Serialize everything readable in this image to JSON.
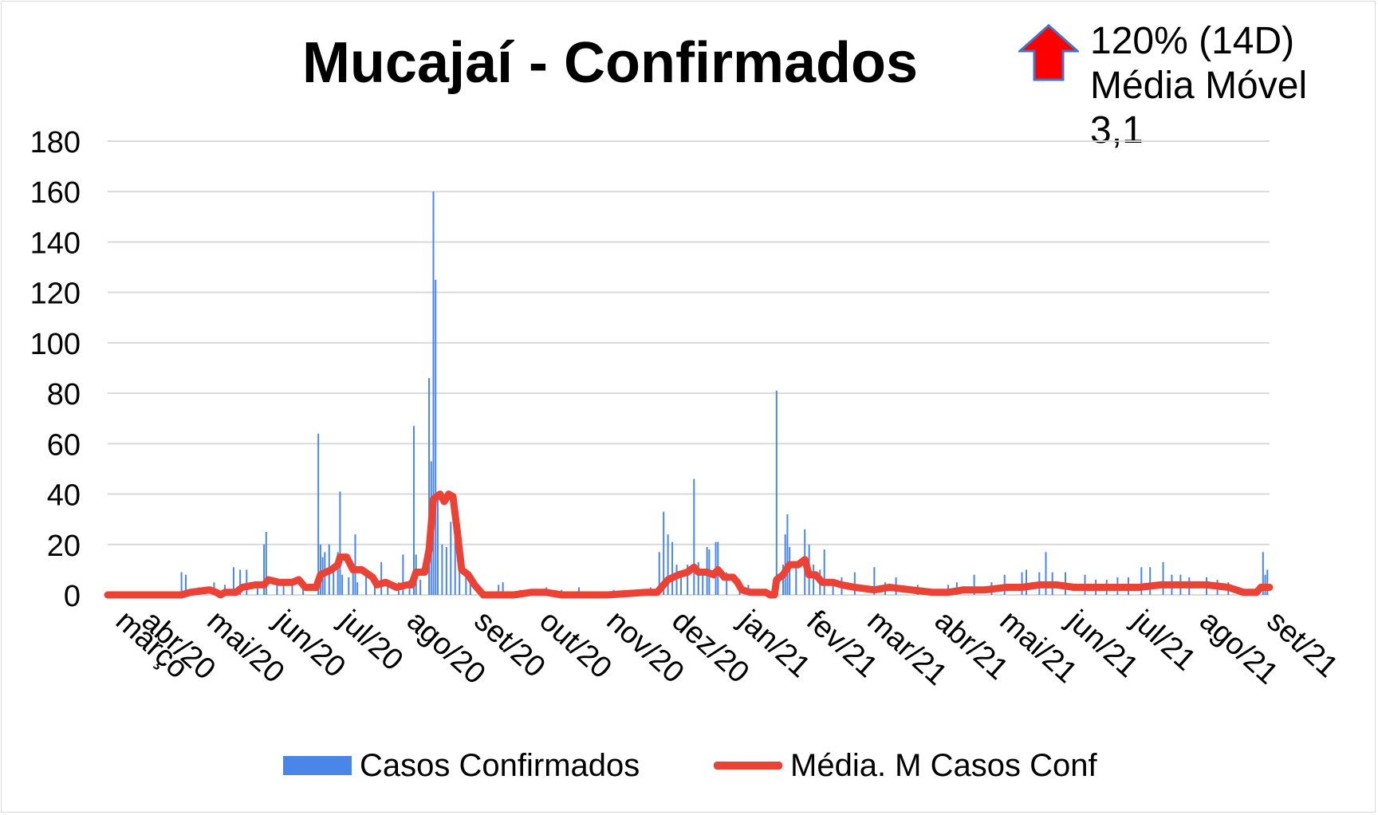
{
  "chart_data": {
    "type": "bar",
    "title": "Mucajaí - Confirmados",
    "ylim": [
      0,
      180
    ],
    "yticks": [
      0,
      20,
      40,
      60,
      80,
      100,
      120,
      140,
      160,
      180
    ],
    "xlim": [
      "2020-03-17",
      "2021-09-03"
    ],
    "grid": true,
    "legend_position": "bottom",
    "x_tick_labels": [
      {
        "date": "2020-03-20",
        "label": "março"
      },
      {
        "date": "2020-04-01",
        "label": "abr/20"
      },
      {
        "date": "2020-05-01",
        "label": "mai/20"
      },
      {
        "date": "2020-06-01",
        "label": "jun/20"
      },
      {
        "date": "2020-07-01",
        "label": "jul/20"
      },
      {
        "date": "2020-08-01",
        "label": "ago/20"
      },
      {
        "date": "2020-09-01",
        "label": "set/20"
      },
      {
        "date": "2020-10-01",
        "label": "out/20"
      },
      {
        "date": "2020-11-01",
        "label": "nov/20"
      },
      {
        "date": "2020-12-01",
        "label": "dez/20"
      },
      {
        "date": "2021-01-01",
        "label": "jan/21"
      },
      {
        "date": "2021-02-01",
        "label": "fev/21"
      },
      {
        "date": "2021-03-01",
        "label": "mar/21"
      },
      {
        "date": "2021-04-01",
        "label": "abr/21"
      },
      {
        "date": "2021-05-01",
        "label": "mai/21"
      },
      {
        "date": "2021-06-01",
        "label": "jun/21"
      },
      {
        "date": "2021-07-01",
        "label": "jul/21"
      },
      {
        "date": "2021-08-01",
        "label": "ago/21"
      },
      {
        "date": "2021-09-01",
        "label": "set/21"
      }
    ],
    "series": [
      {
        "name": "Casos Confirmados",
        "type": "bar",
        "color": "#4a86e8",
        "points": [
          [
            "2020-04-20",
            9
          ],
          [
            "2020-04-22",
            8
          ],
          [
            "2020-04-28",
            3
          ],
          [
            "2020-05-05",
            5
          ],
          [
            "2020-05-10",
            4
          ],
          [
            "2020-05-14",
            11
          ],
          [
            "2020-05-17",
            10
          ],
          [
            "2020-05-20",
            10
          ],
          [
            "2020-05-25",
            4
          ],
          [
            "2020-05-28",
            20
          ],
          [
            "2020-05-29",
            25
          ],
          [
            "2020-06-03",
            6
          ],
          [
            "2020-06-06",
            5
          ],
          [
            "2020-06-10",
            4
          ],
          [
            "2020-06-15",
            3
          ],
          [
            "2020-06-22",
            64
          ],
          [
            "2020-06-23",
            20
          ],
          [
            "2020-06-24",
            15
          ],
          [
            "2020-06-25",
            17
          ],
          [
            "2020-06-27",
            20
          ],
          [
            "2020-06-29",
            12
          ],
          [
            "2020-07-01",
            17
          ],
          [
            "2020-07-02",
            41
          ],
          [
            "2020-07-03",
            8
          ],
          [
            "2020-07-06",
            7
          ],
          [
            "2020-07-08",
            12
          ],
          [
            "2020-07-09",
            24
          ],
          [
            "2020-07-10",
            5
          ],
          [
            "2020-07-14",
            8
          ],
          [
            "2020-07-18",
            4
          ],
          [
            "2020-07-21",
            13
          ],
          [
            "2020-07-24",
            4
          ],
          [
            "2020-07-29",
            5
          ],
          [
            "2020-07-31",
            16
          ],
          [
            "2020-08-03",
            6
          ],
          [
            "2020-08-05",
            67
          ],
          [
            "2020-08-06",
            16
          ],
          [
            "2020-08-08",
            6
          ],
          [
            "2020-08-12",
            86
          ],
          [
            "2020-08-13",
            53
          ],
          [
            "2020-08-14",
            160
          ],
          [
            "2020-08-15",
            125
          ],
          [
            "2020-08-16",
            39
          ],
          [
            "2020-08-18",
            20
          ],
          [
            "2020-08-20",
            19
          ],
          [
            "2020-08-22",
            29
          ],
          [
            "2020-08-24",
            25
          ],
          [
            "2020-08-26",
            17
          ],
          [
            "2020-08-29",
            8
          ],
          [
            "2020-08-31",
            5
          ],
          [
            "2020-09-05",
            2
          ],
          [
            "2020-09-13",
            4
          ],
          [
            "2020-09-15",
            5
          ],
          [
            "2020-09-23",
            2
          ],
          [
            "2020-10-05",
            3
          ],
          [
            "2020-10-12",
            2
          ],
          [
            "2020-10-20",
            3
          ],
          [
            "2020-11-05",
            2
          ],
          [
            "2020-11-15",
            2
          ],
          [
            "2020-11-22",
            3
          ],
          [
            "2020-11-26",
            17
          ],
          [
            "2020-11-28",
            33
          ],
          [
            "2020-11-30",
            24
          ],
          [
            "2020-12-02",
            21
          ],
          [
            "2020-12-04",
            12
          ],
          [
            "2020-12-06",
            9
          ],
          [
            "2020-12-09",
            12
          ],
          [
            "2020-12-12",
            46
          ],
          [
            "2020-12-14",
            13
          ],
          [
            "2020-12-16",
            9
          ],
          [
            "2020-12-18",
            19
          ],
          [
            "2020-12-19",
            18
          ],
          [
            "2020-12-22",
            21
          ],
          [
            "2020-12-23",
            21
          ],
          [
            "2020-12-27",
            9
          ],
          [
            "2021-01-02",
            4
          ],
          [
            "2021-01-06",
            4
          ],
          [
            "2021-01-12",
            2
          ],
          [
            "2021-01-19",
            81
          ],
          [
            "2021-01-22",
            12
          ],
          [
            "2021-01-23",
            24
          ],
          [
            "2021-01-24",
            32
          ],
          [
            "2021-01-25",
            19
          ],
          [
            "2021-01-28",
            12
          ],
          [
            "2021-02-01",
            26
          ],
          [
            "2021-02-03",
            20
          ],
          [
            "2021-02-05",
            12
          ],
          [
            "2021-02-08",
            10
          ],
          [
            "2021-02-10",
            18
          ],
          [
            "2021-02-14",
            4
          ],
          [
            "2021-02-18",
            7
          ],
          [
            "2021-02-24",
            9
          ],
          [
            "2021-03-05",
            11
          ],
          [
            "2021-03-10",
            5
          ],
          [
            "2021-03-15",
            7
          ],
          [
            "2021-03-25",
            4
          ],
          [
            "2021-04-08",
            4
          ],
          [
            "2021-04-12",
            5
          ],
          [
            "2021-04-20",
            8
          ],
          [
            "2021-04-28",
            5
          ],
          [
            "2021-05-04",
            8
          ],
          [
            "2021-05-12",
            9
          ],
          [
            "2021-05-14",
            10
          ],
          [
            "2021-05-20",
            9
          ],
          [
            "2021-05-23",
            17
          ],
          [
            "2021-05-26",
            9
          ],
          [
            "2021-06-01",
            9
          ],
          [
            "2021-06-10",
            8
          ],
          [
            "2021-06-15",
            6
          ],
          [
            "2021-06-20",
            6
          ],
          [
            "2021-06-25",
            7
          ],
          [
            "2021-06-30",
            7
          ],
          [
            "2021-07-06",
            11
          ],
          [
            "2021-07-10",
            11
          ],
          [
            "2021-07-16",
            13
          ],
          [
            "2021-07-20",
            8
          ],
          [
            "2021-07-24",
            8
          ],
          [
            "2021-07-28",
            7
          ],
          [
            "2021-08-05",
            7
          ],
          [
            "2021-08-10",
            6
          ],
          [
            "2021-08-15",
            5
          ],
          [
            "2021-08-31",
            17
          ],
          [
            "2021-09-01",
            8
          ],
          [
            "2021-09-02",
            10
          ]
        ]
      },
      {
        "name": "Média. M Casos Conf",
        "type": "line",
        "color": "#ea4335",
        "points": [
          [
            "2020-03-17",
            0
          ],
          [
            "2020-04-20",
            0
          ],
          [
            "2020-04-24",
            1
          ],
          [
            "2020-05-03",
            2
          ],
          [
            "2020-05-06",
            1
          ],
          [
            "2020-05-08",
            0
          ],
          [
            "2020-05-10",
            1
          ],
          [
            "2020-05-15",
            1
          ],
          [
            "2020-05-18",
            3
          ],
          [
            "2020-05-24",
            4
          ],
          [
            "2020-05-28",
            4
          ],
          [
            "2020-05-30",
            6
          ],
          [
            "2020-06-04",
            5
          ],
          [
            "2020-06-10",
            5
          ],
          [
            "2020-06-13",
            6
          ],
          [
            "2020-06-16",
            3
          ],
          [
            "2020-06-21",
            3
          ],
          [
            "2020-06-23",
            8
          ],
          [
            "2020-06-28",
            10
          ],
          [
            "2020-07-01",
            12
          ],
          [
            "2020-07-02",
            15
          ],
          [
            "2020-07-05",
            15
          ],
          [
            "2020-07-08",
            10
          ],
          [
            "2020-07-12",
            10
          ],
          [
            "2020-07-17",
            7
          ],
          [
            "2020-07-19",
            4
          ],
          [
            "2020-07-23",
            5
          ],
          [
            "2020-07-28",
            3
          ],
          [
            "2020-08-02",
            4
          ],
          [
            "2020-08-04",
            4
          ],
          [
            "2020-08-06",
            9
          ],
          [
            "2020-08-10",
            9
          ],
          [
            "2020-08-12",
            18
          ],
          [
            "2020-08-14",
            38
          ],
          [
            "2020-08-17",
            40
          ],
          [
            "2020-08-19",
            37
          ],
          [
            "2020-08-21",
            40
          ],
          [
            "2020-08-23",
            39
          ],
          [
            "2020-08-25",
            25
          ],
          [
            "2020-08-27",
            10
          ],
          [
            "2020-08-30",
            8
          ],
          [
            "2020-09-02",
            4
          ],
          [
            "2020-09-06",
            0
          ],
          [
            "2020-09-20",
            0
          ],
          [
            "2020-09-28",
            1
          ],
          [
            "2020-10-05",
            1
          ],
          [
            "2020-10-12",
            0
          ],
          [
            "2020-10-25",
            0
          ],
          [
            "2020-11-02",
            0
          ],
          [
            "2020-11-20",
            1
          ],
          [
            "2020-11-25",
            1
          ],
          [
            "2020-11-30",
            6
          ],
          [
            "2020-12-05",
            8
          ],
          [
            "2020-12-09",
            9
          ],
          [
            "2020-12-12",
            11
          ],
          [
            "2020-12-14",
            9
          ],
          [
            "2020-12-18",
            9
          ],
          [
            "2020-12-21",
            8
          ],
          [
            "2020-12-23",
            10
          ],
          [
            "2020-12-26",
            7
          ],
          [
            "2020-12-30",
            7
          ],
          [
            "2021-01-01",
            5
          ],
          [
            "2021-01-03",
            2
          ],
          [
            "2021-01-07",
            1
          ],
          [
            "2021-01-12",
            1
          ],
          [
            "2021-01-14",
            1
          ],
          [
            "2021-01-16",
            0
          ],
          [
            "2021-01-18",
            0
          ],
          [
            "2021-01-19",
            6
          ],
          [
            "2021-01-22",
            8
          ],
          [
            "2021-01-25",
            12
          ],
          [
            "2021-01-29",
            12
          ],
          [
            "2021-02-01",
            14
          ],
          [
            "2021-02-03",
            8
          ],
          [
            "2021-02-06",
            8
          ],
          [
            "2021-02-09",
            5
          ],
          [
            "2021-02-14",
            5
          ],
          [
            "2021-02-18",
            4
          ],
          [
            "2021-02-24",
            3
          ],
          [
            "2021-03-05",
            2
          ],
          [
            "2021-03-12",
            3
          ],
          [
            "2021-03-22",
            2
          ],
          [
            "2021-04-01",
            1
          ],
          [
            "2021-04-08",
            1
          ],
          [
            "2021-04-15",
            2
          ],
          [
            "2021-04-25",
            2
          ],
          [
            "2021-05-05",
            3
          ],
          [
            "2021-05-12",
            3
          ],
          [
            "2021-05-20",
            4
          ],
          [
            "2021-05-28",
            4
          ],
          [
            "2021-06-05",
            3
          ],
          [
            "2021-06-15",
            3
          ],
          [
            "2021-06-25",
            3
          ],
          [
            "2021-07-05",
            3
          ],
          [
            "2021-07-15",
            4
          ],
          [
            "2021-07-25",
            4
          ],
          [
            "2021-08-05",
            4
          ],
          [
            "2021-08-15",
            3
          ],
          [
            "2021-08-22",
            1
          ],
          [
            "2021-08-28",
            1
          ],
          [
            "2021-08-30",
            3
          ],
          [
            "2021-09-03",
            3
          ]
        ]
      }
    ]
  },
  "indicator": {
    "arrow": "up-arrow-icon",
    "arrow_color": "#ff0000",
    "arrow_border": "#4472c4",
    "line1": "120% (14D)",
    "line2": "Média Móvel",
    "line3": "3,1"
  }
}
